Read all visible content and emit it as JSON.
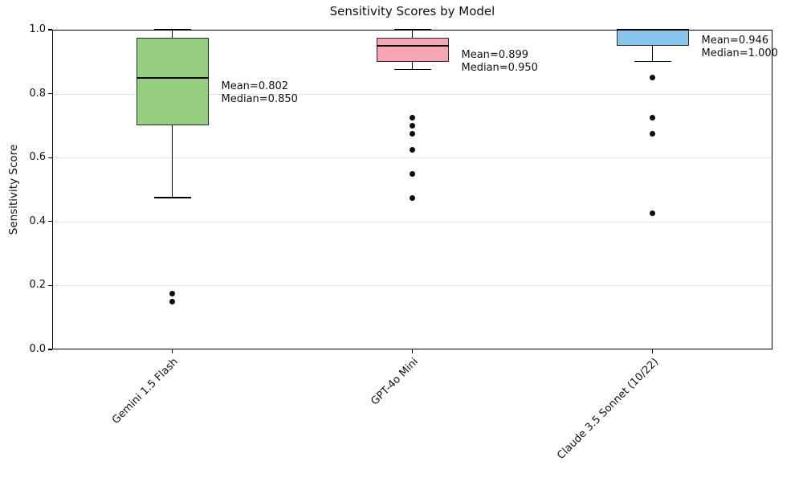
{
  "chart_data": {
    "type": "box",
    "title": "Sensitivity Scores by Model",
    "xlabel": "",
    "ylabel": "Sensitivity Score",
    "ylim": [
      0.0,
      1.0
    ],
    "ytick_values": [
      0.0,
      0.2,
      0.4,
      0.6,
      0.8,
      1.0
    ],
    "ytick_labels": [
      "0.0",
      "0.2",
      "0.4",
      "0.6",
      "0.8",
      "1.0"
    ],
    "grid": "horizontal",
    "legend": "none",
    "series": [
      {
        "label": "Gemini 1.5 Flash",
        "box_color": "#93cf7f",
        "whisker_low": 0.475,
        "q1": 0.7,
        "median": 0.85,
        "q3": 0.975,
        "whisker_high": 1.0,
        "mean": 0.802,
        "outliers": [
          0.175,
          0.15
        ],
        "annotation_lines": [
          "Mean=0.802",
          "Median=0.850"
        ]
      },
      {
        "label": "GPT-4o Mini",
        "box_color": "#f8a6b5",
        "whisker_low": 0.875,
        "q1": 0.9,
        "median": 0.95,
        "q3": 0.975,
        "whisker_high": 1.0,
        "mean": 0.899,
        "outliers": [
          0.725,
          0.7,
          0.675,
          0.625,
          0.55,
          0.475
        ],
        "annotation_lines": [
          "Mean=0.899",
          "Median=0.950"
        ]
      },
      {
        "label": "Claude 3.5 Sonnet (10/22)",
        "box_color": "#87c5ed",
        "whisker_low": 0.9,
        "q1": 0.95,
        "median": 1.0,
        "q3": 1.0,
        "whisker_high": 1.0,
        "mean": 0.946,
        "outliers": [
          0.85,
          0.725,
          0.675,
          0.425
        ],
        "annotation_lines": [
          "Mean=0.946",
          "Median=1.000"
        ]
      }
    ]
  }
}
